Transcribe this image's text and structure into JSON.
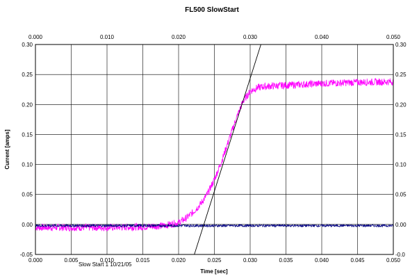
{
  "chart_data": {
    "type": "line",
    "title": "FL500 SlowStart",
    "xlabel": "Time [sec]",
    "ylabel": "Current [amps]",
    "footnote": "Slow Start 1    10/21/05",
    "xlim": [
      0.0,
      0.05
    ],
    "ylim": [
      -0.05,
      0.3
    ],
    "x_ticks": [
      "0.000",
      "0.005",
      "0.010",
      "0.015",
      "0.020",
      "0.025",
      "0.030",
      "0.035",
      "0.040",
      "0.045",
      "0.050"
    ],
    "x_top_ticks": [
      "0.000",
      "0.010",
      "0.020",
      "0.030",
      "0.040",
      "0.050"
    ],
    "y_ticks": [
      "-0.05",
      "0.00",
      "0.05",
      "0.10",
      "0.15",
      "0.20",
      "0.25",
      "0.30"
    ],
    "y_right_ticks": [
      "-0.0",
      "0.00",
      "0.05",
      "0.10",
      "0.15",
      "0.20",
      "0.25",
      "0.30"
    ],
    "grid": true,
    "series": [
      {
        "color": "#ff00ff",
        "x": [
          0.0,
          0.005,
          0.01,
          0.015,
          0.018,
          0.02,
          0.021,
          0.022,
          0.023,
          0.024,
          0.025,
          0.026,
          0.027,
          0.028,
          0.029,
          0.03,
          0.031,
          0.032,
          0.035,
          0.04,
          0.045,
          0.05
        ],
        "values": [
          -0.005,
          -0.005,
          -0.005,
          -0.004,
          -0.002,
          0.003,
          0.01,
          0.02,
          0.033,
          0.05,
          0.075,
          0.105,
          0.14,
          0.175,
          0.205,
          0.222,
          0.228,
          0.23,
          0.232,
          0.235,
          0.237,
          0.238
        ],
        "noise": 0.006
      },
      {
        "color": "#000080",
        "x": [
          0.0,
          0.05
        ],
        "values": [
          -0.002,
          -0.002
        ],
        "noise": 0.002
      },
      {
        "color": "#000000",
        "x": [
          0.0222,
          0.0315
        ],
        "values": [
          -0.05,
          0.3
        ],
        "noise": 0
      }
    ]
  }
}
